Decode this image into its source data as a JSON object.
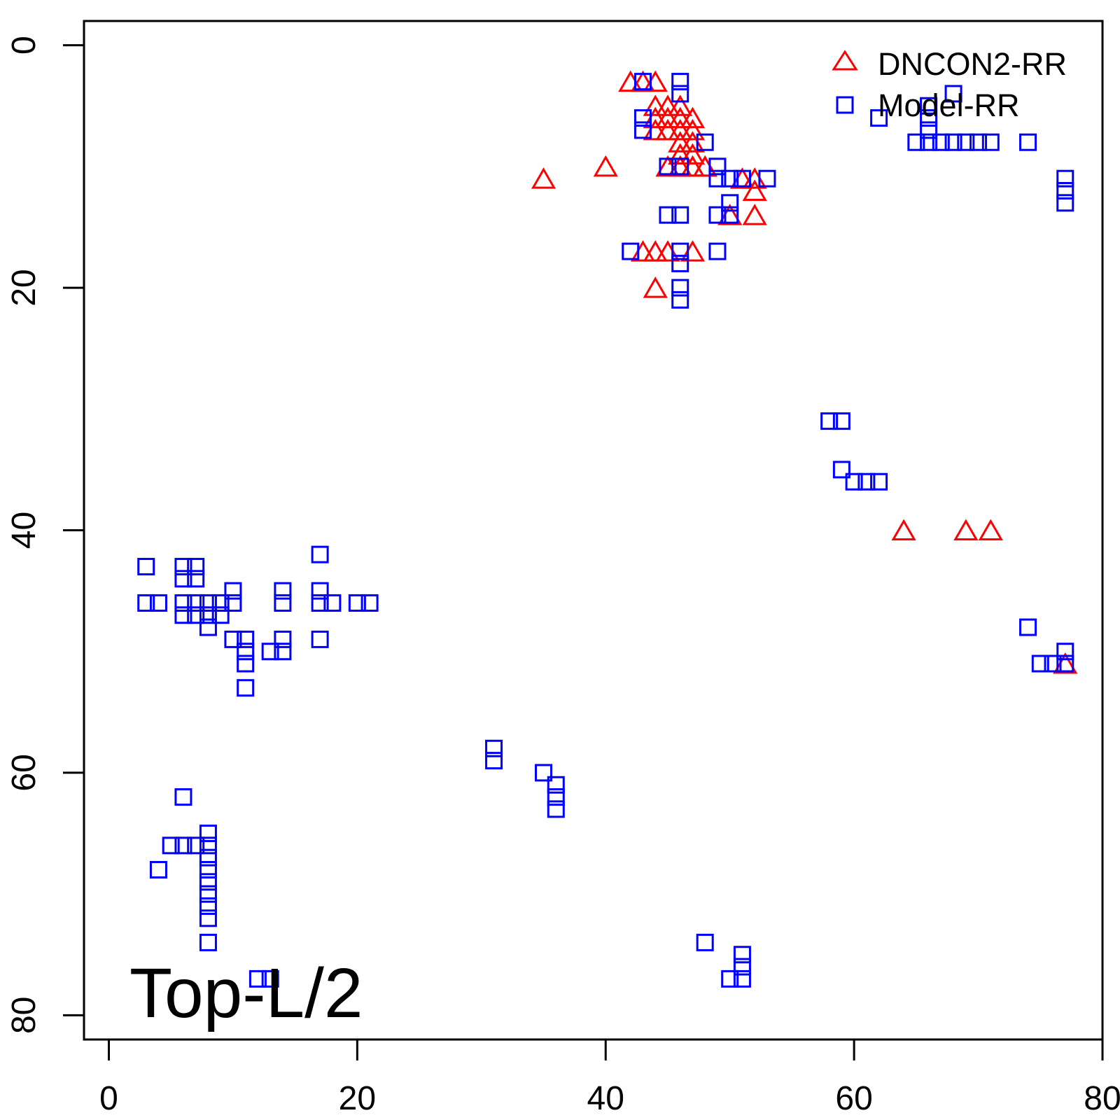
{
  "chart_data": {
    "type": "scatter",
    "title": "",
    "xlabel": "",
    "ylabel": "",
    "xlim": [
      -2,
      80
    ],
    "ylim": [
      82,
      -2
    ],
    "x_ticks": [
      "0",
      "20",
      "40",
      "60",
      "80"
    ],
    "y_ticks": [
      "0",
      "20",
      "40",
      "60",
      "80"
    ],
    "annotation": "Top-L/2",
    "grid": false,
    "legend_position": "top-right",
    "series": [
      {
        "name": "DNCON2-RR",
        "marker": "triangle",
        "color": "#ff0000",
        "points": [
          [
            42,
            3
          ],
          [
            43,
            3
          ],
          [
            44,
            3
          ],
          [
            44,
            5
          ],
          [
            45,
            5
          ],
          [
            46,
            5
          ],
          [
            44,
            6
          ],
          [
            45,
            6
          ],
          [
            46,
            6
          ],
          [
            47,
            6
          ],
          [
            44,
            7
          ],
          [
            45,
            7
          ],
          [
            46,
            7
          ],
          [
            47,
            7
          ],
          [
            46,
            8
          ],
          [
            47,
            8
          ],
          [
            46,
            9
          ],
          [
            47,
            9
          ],
          [
            46,
            10
          ],
          [
            47,
            10
          ],
          [
            48,
            10
          ],
          [
            45,
            10
          ],
          [
            46,
            10
          ],
          [
            47,
            10
          ],
          [
            48,
            10
          ],
          [
            35,
            11
          ],
          [
            40,
            10
          ],
          [
            51,
            11
          ],
          [
            52,
            11
          ],
          [
            52,
            12
          ],
          [
            50,
            14
          ],
          [
            52,
            14
          ],
          [
            43,
            17
          ],
          [
            44,
            17
          ],
          [
            45,
            17
          ],
          [
            47,
            17
          ],
          [
            44,
            20
          ],
          [
            64,
            40
          ],
          [
            69,
            40
          ],
          [
            71,
            40
          ],
          [
            77,
            51
          ]
        ]
      },
      {
        "name": "Model-RR",
        "marker": "square",
        "color": "#0000ff",
        "points": [
          [
            43,
            3
          ],
          [
            46,
            3
          ],
          [
            46,
            4
          ],
          [
            68,
            4
          ],
          [
            66,
            5
          ],
          [
            43,
            6
          ],
          [
            66,
            6
          ],
          [
            62,
            6
          ],
          [
            43,
            7
          ],
          [
            66,
            7
          ],
          [
            48,
            8
          ],
          [
            65,
            8
          ],
          [
            66,
            8
          ],
          [
            67,
            8
          ],
          [
            68,
            8
          ],
          [
            69,
            8
          ],
          [
            70,
            8
          ],
          [
            71,
            8
          ],
          [
            74,
            8
          ],
          [
            45,
            10
          ],
          [
            46,
            10
          ],
          [
            49,
            10
          ],
          [
            49,
            11
          ],
          [
            50,
            11
          ],
          [
            51,
            11
          ],
          [
            53,
            11
          ],
          [
            77,
            11
          ],
          [
            77,
            12
          ],
          [
            77,
            13
          ],
          [
            50,
            13
          ],
          [
            45,
            14
          ],
          [
            46,
            14
          ],
          [
            49,
            14
          ],
          [
            50,
            14
          ],
          [
            42,
            17
          ],
          [
            46,
            17
          ],
          [
            49,
            17
          ],
          [
            46,
            18
          ],
          [
            46,
            20
          ],
          [
            46,
            21
          ],
          [
            58,
            31
          ],
          [
            59,
            31
          ],
          [
            59,
            35
          ],
          [
            60,
            36
          ],
          [
            61,
            36
          ],
          [
            62,
            36
          ],
          [
            17,
            42
          ],
          [
            3,
            43
          ],
          [
            6,
            43
          ],
          [
            7,
            43
          ],
          [
            6,
            44
          ],
          [
            7,
            44
          ],
          [
            10,
            45
          ],
          [
            14,
            45
          ],
          [
            17,
            45
          ],
          [
            3,
            46
          ],
          [
            4,
            46
          ],
          [
            6,
            46
          ],
          [
            7,
            46
          ],
          [
            8,
            46
          ],
          [
            9,
            46
          ],
          [
            10,
            46
          ],
          [
            14,
            46
          ],
          [
            17,
            46
          ],
          [
            18,
            46
          ],
          [
            20,
            46
          ],
          [
            21,
            46
          ],
          [
            6,
            47
          ],
          [
            7,
            47
          ],
          [
            8,
            47
          ],
          [
            9,
            47
          ],
          [
            8,
            48
          ],
          [
            74,
            48
          ],
          [
            10,
            49
          ],
          [
            11,
            49
          ],
          [
            14,
            49
          ],
          [
            17,
            49
          ],
          [
            11,
            50
          ],
          [
            13,
            50
          ],
          [
            14,
            50
          ],
          [
            77,
            50
          ],
          [
            11,
            51
          ],
          [
            75,
            51
          ],
          [
            76,
            51
          ],
          [
            77,
            51
          ],
          [
            11,
            53
          ],
          [
            31,
            58
          ],
          [
            31,
            59
          ],
          [
            35,
            60
          ],
          [
            36,
            61
          ],
          [
            36,
            62
          ],
          [
            36,
            63
          ],
          [
            6,
            62
          ],
          [
            8,
            65
          ],
          [
            5,
            66
          ],
          [
            6,
            66
          ],
          [
            7,
            66
          ],
          [
            8,
            66
          ],
          [
            8,
            67
          ],
          [
            8,
            68
          ],
          [
            4,
            68
          ],
          [
            8,
            69
          ],
          [
            8,
            70
          ],
          [
            8,
            71
          ],
          [
            8,
            72
          ],
          [
            8,
            74
          ],
          [
            48,
            74
          ],
          [
            51,
            75
          ],
          [
            51,
            76
          ],
          [
            51,
            77
          ],
          [
            12,
            77
          ],
          [
            13,
            77
          ],
          [
            50,
            77
          ]
        ]
      }
    ]
  }
}
